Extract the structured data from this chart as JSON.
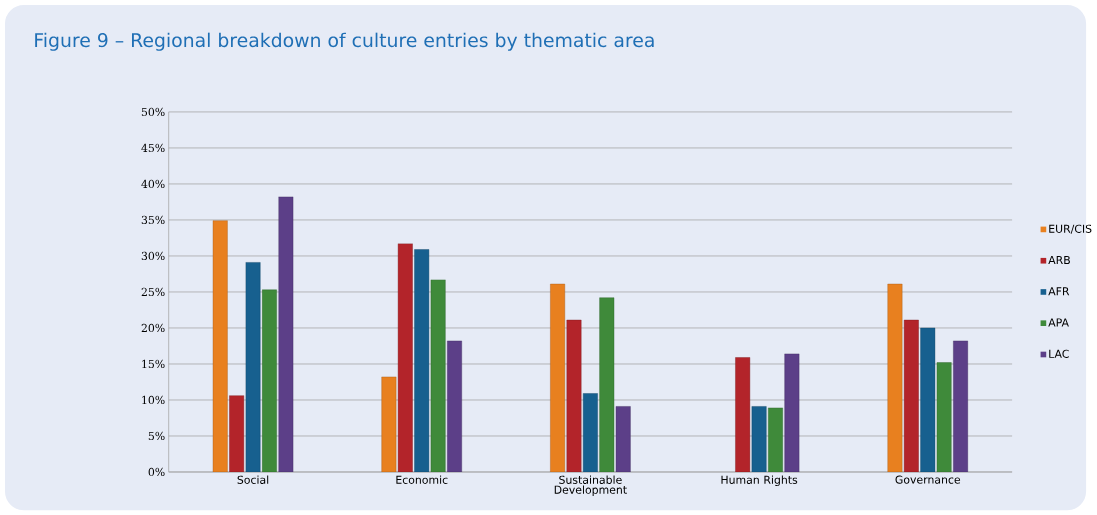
{
  "chart_data": {
    "type": "bar",
    "title": "Figure 9 – Regional breakdown of culture entries by thematic area",
    "categories": [
      "Social",
      "Economic",
      "Sustainable Development",
      "Human Rights",
      "Governance"
    ],
    "series": [
      {
        "name": "EUR/CIS",
        "color": "#e8801f",
        "values": [
          34.9,
          13.2,
          26.1,
          null,
          26.1
        ]
      },
      {
        "name": "ARB",
        "color": "#b3242a",
        "values": [
          10.6,
          31.7,
          21.1,
          15.9,
          21.1
        ]
      },
      {
        "name": "AFR",
        "color": "#17608f",
        "values": [
          29.1,
          30.9,
          10.9,
          9.1,
          20.0
        ]
      },
      {
        "name": "APA",
        "color": "#3f8a3a",
        "values": [
          25.3,
          26.7,
          24.2,
          8.9,
          15.2
        ]
      },
      {
        "name": "LAC",
        "color": "#5c3f88",
        "values": [
          38.2,
          18.2,
          9.1,
          16.4,
          18.2
        ]
      }
    ],
    "ylim": [
      0,
      50
    ],
    "yticks": [
      {
        "value": 0,
        "label": "0%"
      },
      {
        "value": 5,
        "label": "5%"
      },
      {
        "value": 10,
        "label": "10%"
      },
      {
        "value": 15,
        "label": "15%"
      },
      {
        "value": 20,
        "label": "20%"
      },
      {
        "value": 25,
        "label": "25%"
      },
      {
        "value": 30,
        "label": "30%"
      },
      {
        "value": 35,
        "label": "35%"
      },
      {
        "value": 40,
        "label": "40%"
      },
      {
        "value": 45,
        "label": "45%"
      },
      {
        "value": 50,
        "label": "50%"
      }
    ],
    "grid": "y",
    "legend": "right"
  }
}
